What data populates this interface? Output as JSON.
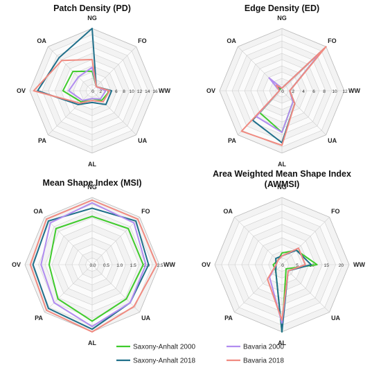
{
  "legend": [
    {
      "name": "Saxony-Anhalt 2000",
      "color": "#3fcb2c"
    },
    {
      "name": "Saxony-Anhalt 2018",
      "color": "#1f6f8a"
    },
    {
      "name": "Bavaria 2000",
      "color": "#b18cf0"
    },
    {
      "name": "Bavaria 2018",
      "color": "#f08a80"
    }
  ],
  "chart_data": [
    {
      "type": "radar",
      "title": "Patch Density (PD)",
      "categories": [
        "NG",
        "FO",
        "WW",
        "UA",
        "AL",
        "PA",
        "OV",
        "OA"
      ],
      "ticks": [
        "0",
        "2",
        "4",
        "6",
        "8",
        "10",
        "12",
        "14",
        "16"
      ],
      "rmax": 16,
      "series": [
        {
          "name": "Saxony-Anhalt 2000",
          "values": [
            5,
            1.5,
            4.5,
            3.5,
            2,
            4,
            7.5,
            7
          ]
        },
        {
          "name": "Saxony-Anhalt 2018",
          "values": [
            16,
            1.5,
            5,
            5,
            3,
            5,
            14,
            12
          ]
        },
        {
          "name": "Bavaria 2000",
          "values": [
            6,
            1.5,
            3.5,
            3,
            2,
            3.5,
            6,
            5
          ]
        },
        {
          "name": "Bavaria 2018",
          "values": [
            8,
            1.5,
            4.5,
            4,
            2.5,
            4.5,
            15,
            11
          ]
        }
      ]
    },
    {
      "type": "radar",
      "title": "Edge Density (ED)",
      "categories": [
        "NG",
        "FO",
        "WW",
        "UA",
        "AL",
        "PA",
        "OV",
        "OA"
      ],
      "ticks": [
        "0",
        "2",
        "4",
        "6",
        "8",
        "10",
        "12"
      ],
      "rmax": 12,
      "series": [
        {
          "name": "Saxony-Anhalt 2000",
          "values": [
            0.5,
            11,
            1.5,
            3,
            8,
            6,
            0.5,
            0.5
          ]
        },
        {
          "name": "Saxony-Anhalt 2018",
          "values": [
            0.5,
            11.5,
            1.5,
            3.5,
            10,
            8,
            0.5,
            1
          ]
        },
        {
          "name": "Bavaria 2000",
          "values": [
            0.5,
            11,
            1.5,
            3,
            8,
            7,
            0.5,
            3.5
          ]
        },
        {
          "name": "Bavaria 2018",
          "values": [
            0.5,
            12,
            1.5,
            3.5,
            10.5,
            11,
            0.5,
            1.5
          ]
        }
      ]
    },
    {
      "type": "radar",
      "title": "Mean Shape Index (MSI)",
      "categories": [
        "NG",
        "FO",
        "WW",
        "UA",
        "AL",
        "PA",
        "OV",
        "OA"
      ],
      "ticks": [
        "0.0",
        "0.5",
        "1.0",
        "1.5",
        "2.0",
        "2.5"
      ],
      "rmax": 2.5,
      "series": [
        {
          "name": "Saxony-Anhalt 2000",
          "values": [
            1.8,
            1.9,
            1.9,
            1.8,
            2.1,
            1.8,
            1.6,
            1.9
          ]
        },
        {
          "name": "Saxony-Anhalt 2018",
          "values": [
            2.1,
            2.3,
            2.1,
            2.0,
            2.4,
            2.3,
            2.2,
            2.3
          ]
        },
        {
          "name": "Bavaria 2000",
          "values": [
            2.3,
            2.2,
            2.0,
            2.0,
            2.3,
            2.0,
            1.9,
            2.2
          ]
        },
        {
          "name": "Bavaria 2018",
          "values": [
            2.4,
            2.4,
            2.4,
            2.2,
            2.5,
            2.4,
            2.3,
            2.4
          ]
        }
      ]
    },
    {
      "type": "radar",
      "title": "Area Weighted Mean Shape Index\n(AWMSI)",
      "categories": [
        "NG",
        "FO",
        "WW",
        "UA",
        "AL",
        "PA",
        "OV",
        "OA"
      ],
      "ticks": [
        "0",
        "5",
        "10",
        "15",
        "20"
      ],
      "rmax": 23,
      "series": [
        {
          "name": "Saxony-Anhalt 2000",
          "values": [
            4,
            7,
            12,
            2,
            23,
            3,
            3,
            2
          ]
        },
        {
          "name": "Saxony-Anhalt 2018",
          "values": [
            3,
            7,
            10,
            3,
            23,
            3,
            2,
            3
          ]
        },
        {
          "name": "Bavaria 2000",
          "values": [
            3,
            8,
            8,
            3,
            20,
            6,
            2,
            2
          ]
        },
        {
          "name": "Bavaria 2018",
          "values": [
            3,
            8,
            8,
            3,
            19,
            7,
            2,
            2
          ]
        }
      ]
    }
  ]
}
